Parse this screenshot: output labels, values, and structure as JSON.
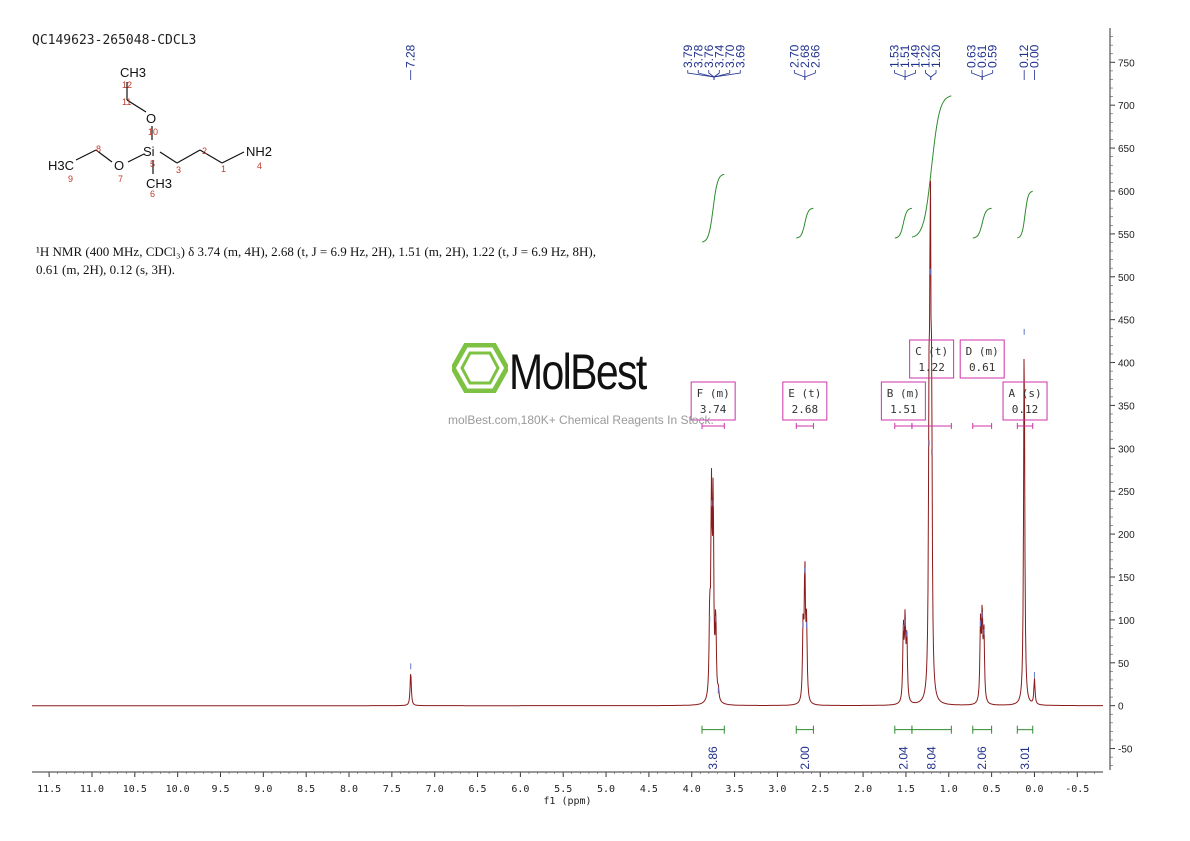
{
  "sample_title": "QC149623-265048-CDCL3",
  "nmr_description": "¹H NMR (400 MHz, CDCl₃) δ 3.74 (m, 4H), 2.68 (t, J = 6.9 Hz, 2H), 1.51 (m, 2H), 1.22 (t, J = 6.9 Hz, 8H), 0.61 (m, 2H), 0.12 (s, 3H).",
  "watermark": {
    "name": "MolBest",
    "tagline": "molBest.com,180K+ Chemical Reagents In Stock.",
    "color": "#7dc242"
  },
  "molecule": {
    "atoms": [
      "CH3",
      "O",
      "Si",
      "NH2",
      "H3C",
      "O",
      "CH3"
    ],
    "numbers": [
      "12",
      "11",
      "10",
      "5",
      "3",
      "2",
      "1",
      "4",
      "8",
      "9",
      "7",
      "6"
    ]
  },
  "colors": {
    "spectrum": "#8b1a1a",
    "integral": "#2e8b2e",
    "multiplet": "#cc33aa",
    "peak_label": "#1f2f8f"
  },
  "chart_data": {
    "type": "line",
    "xlabel": "f1 (ppm)",
    "xlim": [
      11.7,
      -0.8
    ],
    "x_ticks": [
      "11.5",
      "11.0",
      "10.5",
      "10.0",
      "9.5",
      "9.0",
      "8.5",
      "8.0",
      "7.5",
      "7.0",
      "6.5",
      "6.0",
      "5.5",
      "5.0",
      "4.5",
      "4.0",
      "3.5",
      "3.0",
      "2.5",
      "2.0",
      "1.5",
      "1.0",
      "0.5",
      "0.0",
      "-0.5"
    ],
    "ylim": [
      -75,
      790
    ],
    "y_ticks": [
      "750",
      "700",
      "650",
      "600",
      "550",
      "500",
      "450",
      "400",
      "350",
      "300",
      "250",
      "200",
      "150",
      "100",
      "50",
      "0",
      "-50"
    ],
    "peaks": [
      {
        "ppm": 7.28,
        "height": 40
      },
      {
        "ppm": 3.79,
        "height": 95
      },
      {
        "ppm": 3.77,
        "height": 230
      },
      {
        "ppm": 3.75,
        "height": 230
      },
      {
        "ppm": 3.72,
        "height": 95
      },
      {
        "ppm": 3.69,
        "height": 12
      },
      {
        "ppm": 2.7,
        "height": 88
      },
      {
        "ppm": 2.68,
        "height": 152
      },
      {
        "ppm": 2.66,
        "height": 88
      },
      {
        "ppm": 1.53,
        "height": 85
      },
      {
        "ppm": 1.51,
        "height": 90
      },
      {
        "ppm": 1.49,
        "height": 78
      },
      {
        "ppm": 1.23,
        "height": 300
      },
      {
        "ppm": 1.215,
        "height": 500
      },
      {
        "ppm": 1.2,
        "height": 290
      },
      {
        "ppm": 0.63,
        "height": 90
      },
      {
        "ppm": 0.61,
        "height": 100
      },
      {
        "ppm": 0.59,
        "height": 80
      },
      {
        "ppm": 0.12,
        "height": 430
      },
      {
        "ppm": 0.0,
        "height": 30
      }
    ],
    "peak_label_groups": [
      {
        "labels": [
          "7.28"
        ],
        "ppm": 7.28
      },
      {
        "labels": [
          "3.79",
          "3.78",
          "3.76",
          "3.74",
          "3.70",
          "3.69"
        ],
        "ppm": 3.74
      },
      {
        "labels": [
          "2.70",
          "2.68",
          "2.66"
        ],
        "ppm": 2.68
      },
      {
        "labels": [
          "1.53",
          "1.51",
          "1.49"
        ],
        "ppm": 1.51
      },
      {
        "labels": [
          "1.22",
          "1.20"
        ],
        "ppm": 1.21
      },
      {
        "labels": [
          "0.63",
          "0.61",
          "0.59"
        ],
        "ppm": 0.61
      },
      {
        "labels": [
          "0.12"
        ],
        "ppm": 0.12
      },
      {
        "labels": [
          "0.00"
        ],
        "ppm": 0.0
      }
    ],
    "integrals": [
      {
        "label": "3.86",
        "from": 3.88,
        "to": 3.62,
        "low": 540,
        "high": 620
      },
      {
        "label": "2.00",
        "from": 2.78,
        "to": 2.58,
        "low": 545,
        "high": 580
      },
      {
        "label": "2.04",
        "from": 1.63,
        "to": 1.43,
        "low": 545,
        "high": 580
      },
      {
        "label": "8.04",
        "from": 1.43,
        "to": 0.97,
        "low": 545,
        "high": 712
      },
      {
        "label": "2.06",
        "from": 0.72,
        "to": 0.5,
        "low": 545,
        "high": 580
      },
      {
        "label": "3.01",
        "from": 0.2,
        "to": 0.02,
        "low": 545,
        "high": 600
      }
    ],
    "multiplets": [
      {
        "id": "F",
        "kind": "(m)",
        "shift": "3.74",
        "range": [
          3.88,
          3.62
        ],
        "level": "low"
      },
      {
        "id": "E",
        "kind": "(t)",
        "shift": "2.68",
        "range": [
          2.78,
          2.58
        ],
        "level": "low"
      },
      {
        "id": "B",
        "kind": "(m)",
        "shift": "1.51",
        "range": [
          1.63,
          1.43
        ],
        "level": "low"
      },
      {
        "id": "C",
        "kind": "(t)",
        "shift": "1.22",
        "range": [
          1.43,
          0.97
        ],
        "level": "high"
      },
      {
        "id": "D",
        "kind": "(m)",
        "shift": "0.61",
        "range": [
          0.72,
          0.5
        ],
        "level": "high"
      },
      {
        "id": "A",
        "kind": "(s)",
        "shift": "0.12",
        "range": [
          0.2,
          0.02
        ],
        "level": "low"
      }
    ]
  }
}
